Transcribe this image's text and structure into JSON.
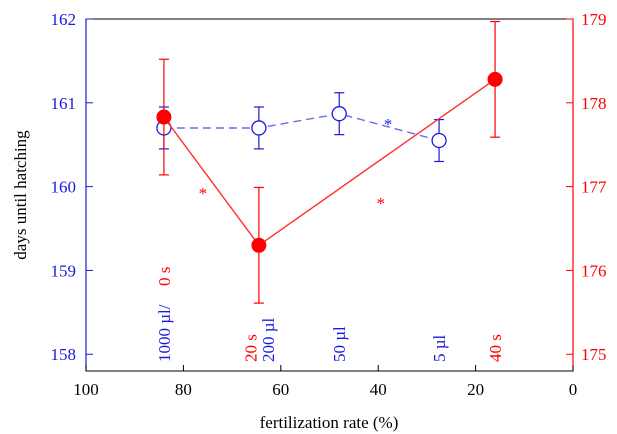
{
  "chart_data": {
    "type": "line",
    "xlabel": "fertilization rate (%)",
    "ylabel": "days until hatching",
    "x_ticks": [
      100,
      80,
      60,
      40,
      20,
      0
    ],
    "x_tick_labels": [
      "100",
      "80",
      "60",
      "40",
      "20",
      "0"
    ],
    "xlim": [
      100,
      0
    ],
    "y_left_lim": [
      157.8,
      162
    ],
    "y_left_ticks": [
      158,
      159,
      160,
      161,
      162
    ],
    "y_left_tick_labels": [
      "158",
      "159",
      "160",
      "161",
      "162"
    ],
    "y_right_lim": [
      174.8,
      179
    ],
    "y_right_ticks": [
      175,
      176,
      177,
      178,
      179
    ],
    "y_right_tick_labels": [
      "175",
      "176",
      "177",
      "178",
      "179"
    ],
    "series": [
      {
        "axis": "left",
        "color": "#1a1adf",
        "line_color": "#6b6bf0",
        "marker": "open-circle",
        "linestyle": "dashed",
        "points": [
          {
            "x": 84,
            "y": 160.7,
            "err": 0.25
          },
          {
            "x": 64.5,
            "y": 160.7,
            "err": 0.25
          },
          {
            "x": 48,
            "y": 160.87,
            "err": 0.25
          },
          {
            "x": 27.5,
            "y": 160.55,
            "err": 0.25
          }
        ]
      },
      {
        "axis": "right",
        "color": "#ff0000",
        "line_color": "#ff3030",
        "marker": "filled-circle",
        "linestyle": "solid",
        "points": [
          {
            "x": 84,
            "y": 177.83,
            "err": 0.69
          },
          {
            "x": 64.5,
            "y": 176.3,
            "err": 0.69
          },
          {
            "x": 16,
            "y": 178.28,
            "err": 0.69
          }
        ]
      }
    ],
    "annotations": [
      {
        "text": "1000 µl/",
        "x": 84,
        "color": "#1a1adf"
      },
      {
        "text": "0 s",
        "x": 84,
        "color": "#ff0000"
      },
      {
        "text": "20 s",
        "x": 66.2,
        "color": "#ff0000"
      },
      {
        "text": "200 µl",
        "x": 62.6,
        "color": "#1a1adf"
      },
      {
        "text": "50 µl",
        "x": 48,
        "color": "#1a1adf"
      },
      {
        "text": "5 µl",
        "x": 27.5,
        "color": "#1a1adf"
      },
      {
        "text": "40 s",
        "x": 16,
        "color": "#ff0000"
      }
    ],
    "significance_marks": [
      {
        "text": "*",
        "x": 76,
        "y_left": 159.95,
        "color": "#ff0000"
      },
      {
        "text": "*",
        "x": 38,
        "y_left": 160.77,
        "color": "#1a1adf"
      },
      {
        "text": "*",
        "x": 39.5,
        "y_left": 159.83,
        "color": "#ff0000"
      }
    ]
  }
}
